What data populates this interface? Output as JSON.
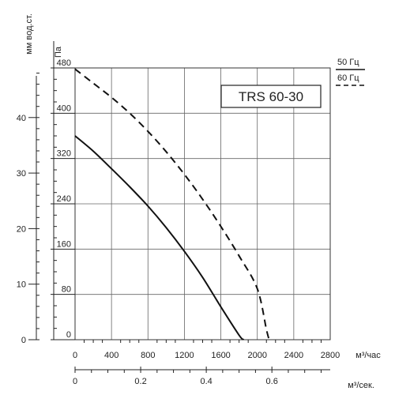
{
  "chart_data": {
    "type": "line",
    "model_label": "TRS 60-30",
    "y_label_pa": "Па",
    "y_label_mm": "мм вод.ст.",
    "x_label_flow_hour": "м³/час",
    "x_label_flow_sec": "м³/сек.",
    "xlim": [
      0,
      2800
    ],
    "ylim": [
      0,
      480
    ],
    "x_ticks": [
      0,
      400,
      800,
      1200,
      1600,
      2000,
      2400,
      2800
    ],
    "y_ticks": [
      0,
      80,
      160,
      240,
      320,
      400,
      480
    ],
    "mm_ticks": [
      0,
      10,
      20,
      30,
      40
    ],
    "sec_ticks": [
      0,
      0.2,
      0.4,
      0.6
    ],
    "legend": [
      {
        "label": "50 Гц",
        "style": "solid"
      },
      {
        "label": "60 Гц",
        "style": "dashed"
      }
    ],
    "series": [
      {
        "name": "50 Гц",
        "style": "solid",
        "x": [
          0,
          200,
          400,
          600,
          800,
          1000,
          1200,
          1400,
          1600,
          1800,
          1850
        ],
        "y": [
          360,
          333,
          302,
          270,
          236,
          198,
          156,
          110,
          58,
          8,
          0
        ]
      },
      {
        "name": "60 Гц",
        "style": "dashed",
        "x": [
          0,
          200,
          400,
          600,
          800,
          1000,
          1200,
          1400,
          1600,
          1800,
          2000,
          2100,
          2130
        ],
        "y": [
          478,
          453,
          428,
          400,
          368,
          332,
          292,
          248,
          200,
          148,
          90,
          18,
          0
        ]
      }
    ],
    "grid": true
  }
}
